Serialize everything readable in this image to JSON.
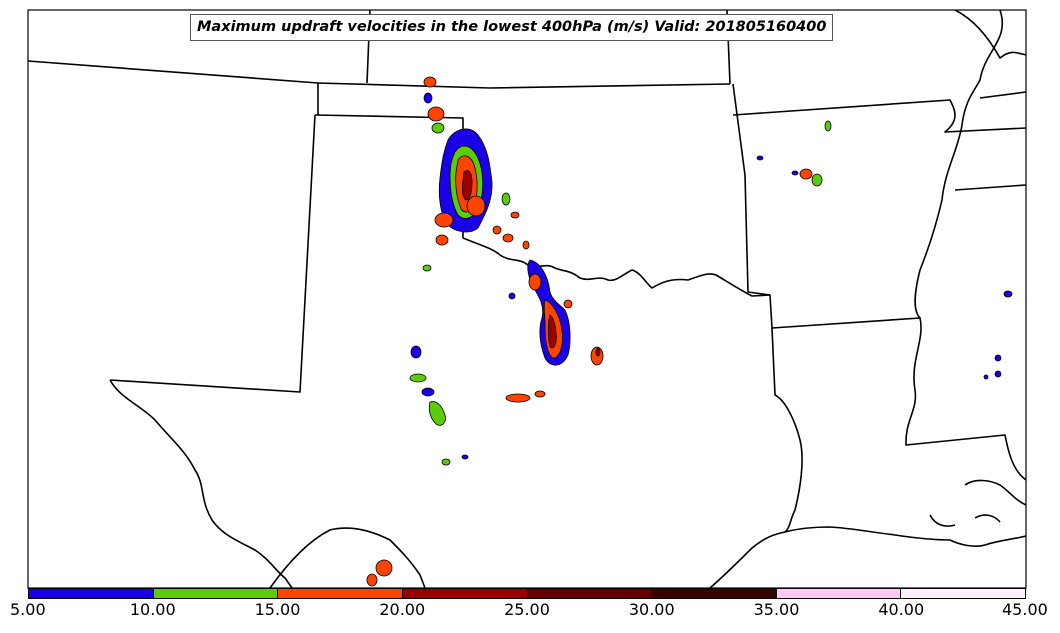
{
  "title": "Maximum updraft velocities in the lowest 400hPa (m/s) Valid: 201805160400",
  "colorbar": {
    "ticks": [
      "5.00",
      "10.00",
      "15.00",
      "20.00",
      "25.00",
      "30.00",
      "35.00",
      "40.00",
      "45.00"
    ],
    "colors": [
      "#1a00e6",
      "#5ccc0a",
      "#ff4400",
      "#9a0000",
      "#660000",
      "#380000",
      "#ffc8f5",
      "#fff0fb"
    ]
  },
  "layers": {
    "state_borders_color": "#000000",
    "contour_levels": [
      "5",
      "10",
      "15",
      "20"
    ],
    "contour_colors": [
      "#1a00e6",
      "#5ccc0a",
      "#ff4400",
      "#9a0000"
    ]
  }
}
